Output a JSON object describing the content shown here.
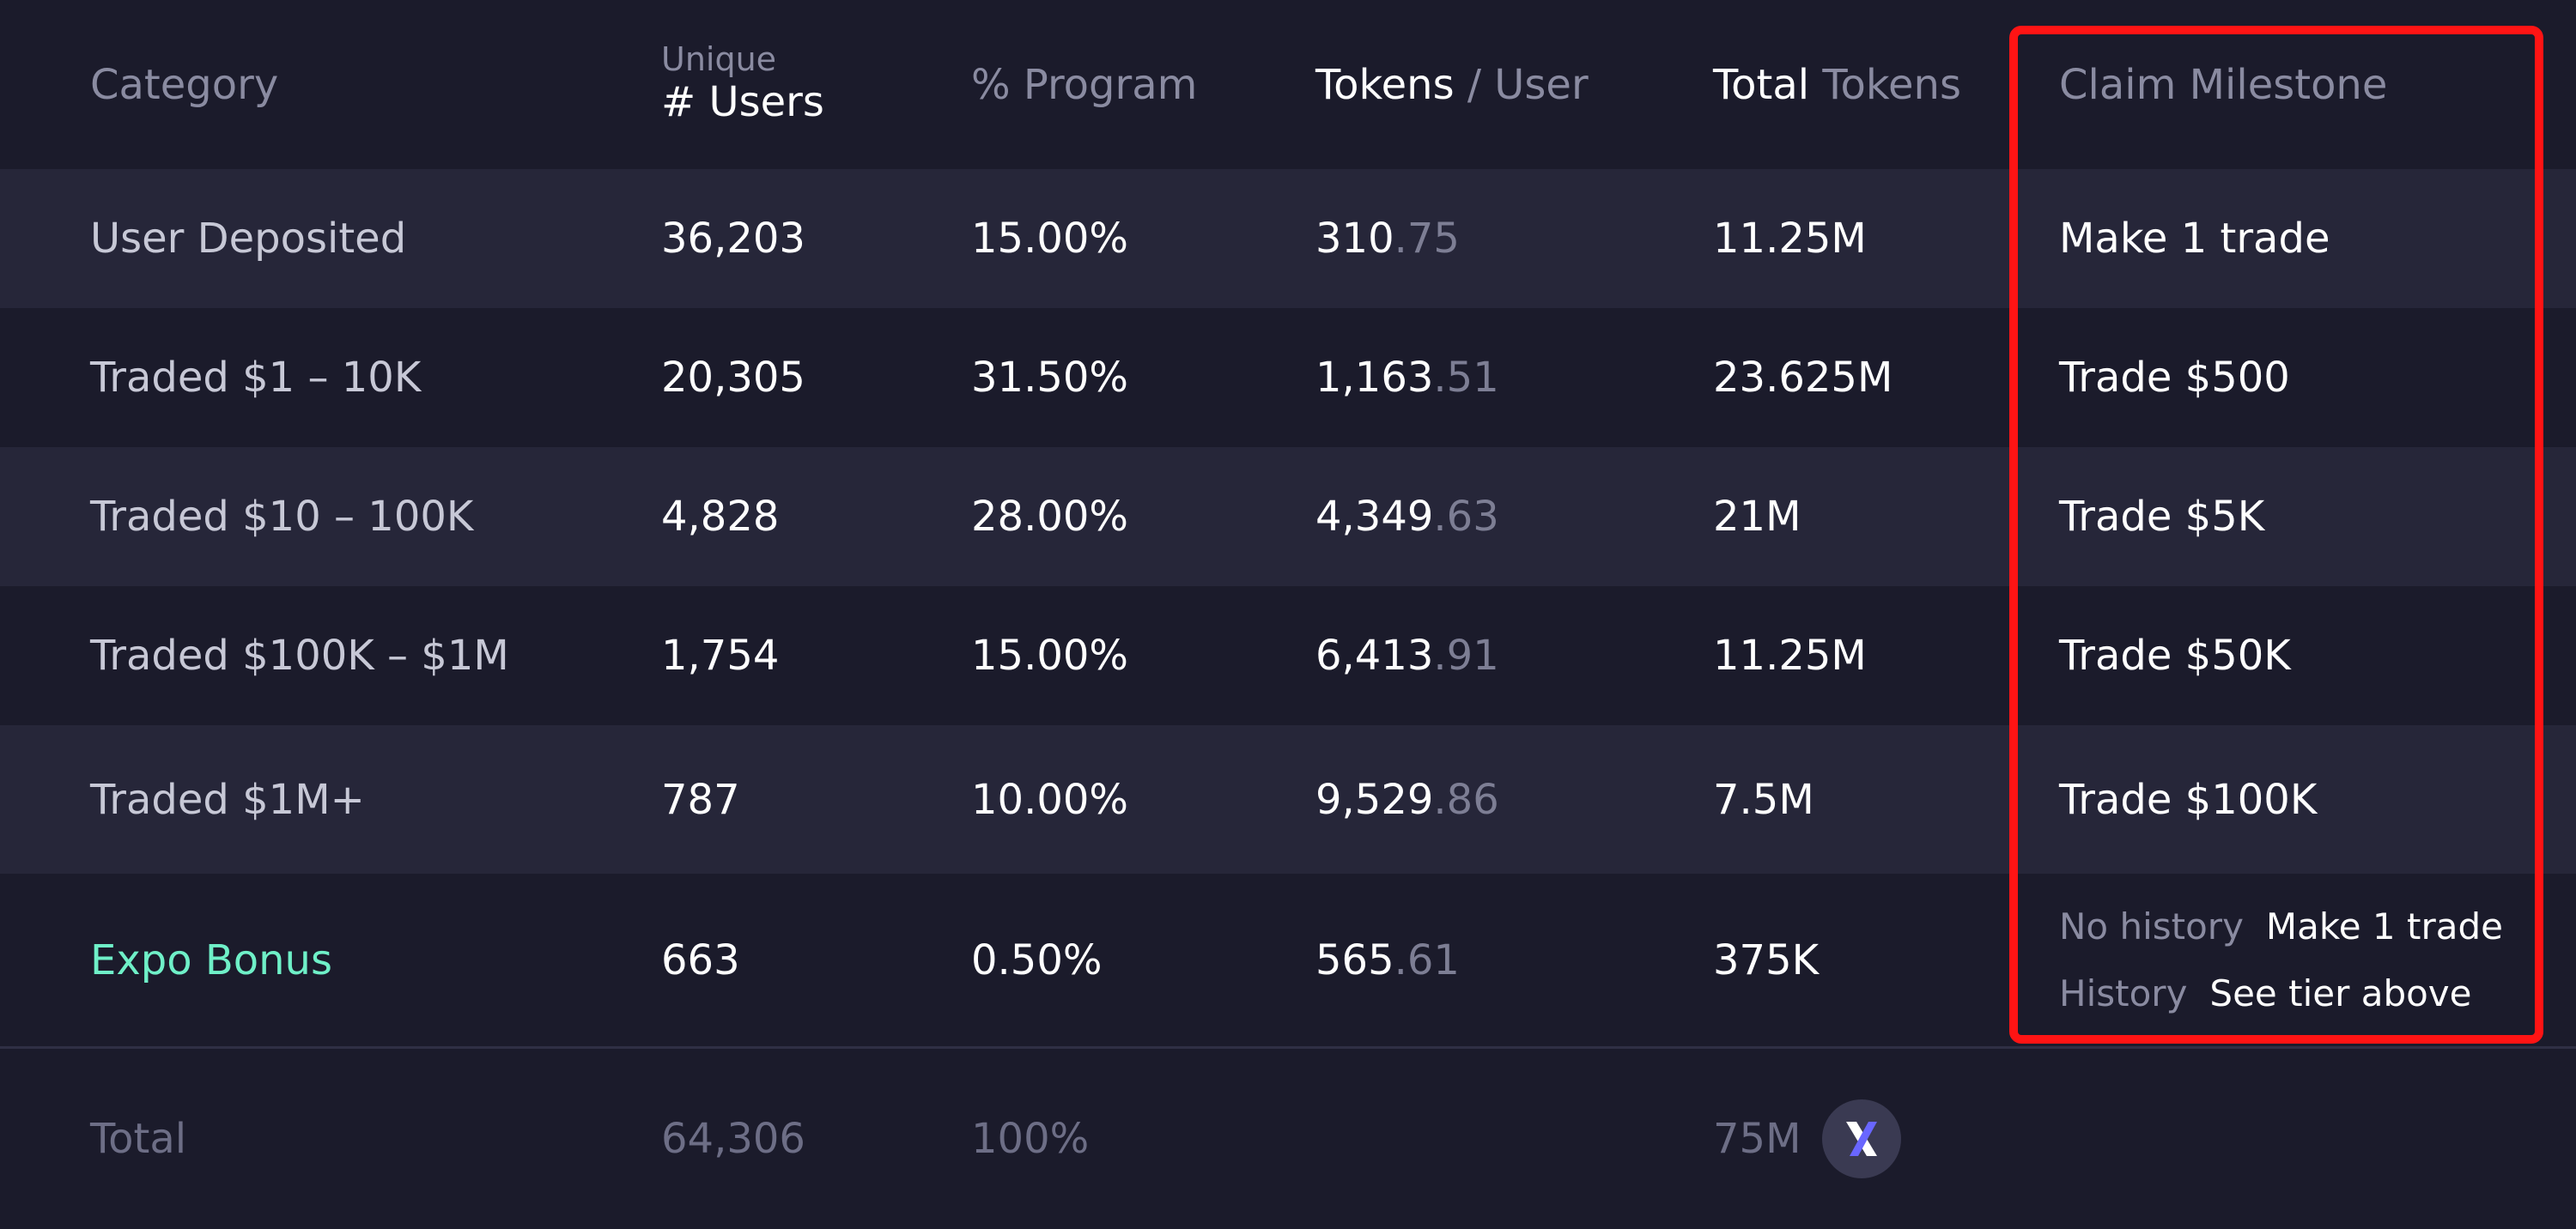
{
  "header": {
    "category": "Category",
    "users_small": "Unique",
    "users_main": "# Users",
    "program": "% Program",
    "tokens_bold": "Tokens",
    "tokens_rest": "/ User",
    "total_bold": "Total",
    "total_rest": "Tokens",
    "milestone": "Claim Milestone"
  },
  "rows": [
    {
      "category": "User Deposited",
      "users": "36,203",
      "program": "15.00%",
      "tokens_int": "310",
      "tokens_dec": ".75",
      "total": "11.25M",
      "milestone": "Make 1 trade"
    },
    {
      "category": "Traded $1 – 10K",
      "users": "20,305",
      "program": "31.50%",
      "tokens_int": "1,163",
      "tokens_dec": ".51",
      "total": "23.625M",
      "milestone": "Trade $500"
    },
    {
      "category": "Traded $10 – 100K",
      "users": "4,828",
      "program": "28.00%",
      "tokens_int": "4,349",
      "tokens_dec": ".63",
      "total": "21M",
      "milestone": "Trade $5K"
    },
    {
      "category": "Traded $100K – $1M",
      "users": "1,754",
      "program": "15.00%",
      "tokens_int": "6,413",
      "tokens_dec": ".91",
      "total": "11.25M",
      "milestone": "Trade $50K"
    },
    {
      "category": "Traded $1M+",
      "users": "787",
      "program": "10.00%",
      "tokens_int": "9,529",
      "tokens_dec": ".86",
      "total": "7.5M",
      "milestone": "Trade $100K"
    }
  ],
  "bonus": {
    "category": "Expo Bonus",
    "users": "663",
    "program": "0.50%",
    "tokens_int": "565",
    "tokens_dec": ".61",
    "total": "375K",
    "milestone_lines": [
      {
        "key": "No history",
        "value": "Make 1 trade"
      },
      {
        "key": "History",
        "value": "See tier above"
      }
    ]
  },
  "total": {
    "label": "Total",
    "users": "64,306",
    "program": "100%",
    "tokens": "75M",
    "icon": "dydx-token-icon"
  },
  "colors": {
    "background": "#1b1b2b",
    "band": "#262639",
    "accent_bonus": "#6ff0c8",
    "highlight": "#ff1414"
  }
}
